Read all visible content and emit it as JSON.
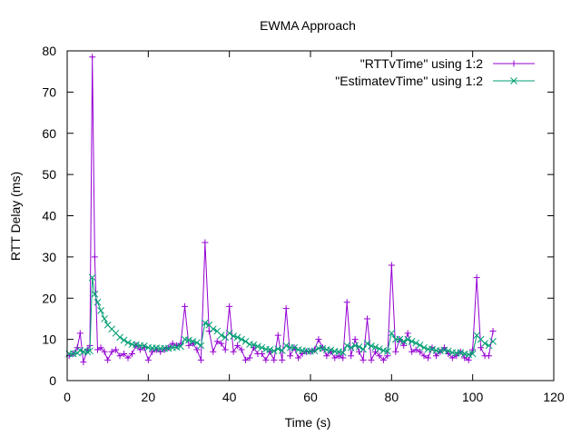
{
  "chart_data": {
    "type": "line",
    "title": "EWMA Approach",
    "xlabel": "Time (s)",
    "ylabel": "RTT Delay (ms)",
    "xlim": [
      0,
      120
    ],
    "ylim": [
      0,
      80
    ],
    "xticks": [
      0,
      20,
      40,
      60,
      80,
      100,
      120
    ],
    "yticks": [
      0,
      10,
      20,
      30,
      40,
      50,
      60,
      70,
      80
    ],
    "legend_position": "top-right",
    "grid": false,
    "series": [
      {
        "name": "\"RTTvTime\" using 1:2",
        "color": "#9400d3",
        "marker": "plus",
        "x": [
          0.5,
          1.5,
          2.5,
          3.2,
          4.0,
          5.0,
          5.6,
          6.2,
          6.8,
          7.5,
          8.3,
          9.2,
          10.0,
          11.0,
          12.0,
          13.0,
          14.0,
          15.0,
          16.0,
          17.0,
          18.0,
          19.0,
          20.0,
          21.0,
          22.0,
          23.0,
          24.0,
          25.0,
          26.0,
          27.0,
          28.0,
          29.0,
          30.0,
          31.0,
          32.0,
          33.0,
          34.0,
          35.0,
          36.0,
          37.0,
          38.0,
          39.0,
          40.0,
          41.0,
          42.0,
          43.0,
          44.0,
          45.0,
          46.0,
          47.0,
          48.0,
          49.0,
          50.0,
          51.0,
          52.0,
          53.0,
          54.0,
          55.0,
          56.0,
          57.0,
          58.0,
          59.0,
          60.0,
          61.0,
          62.0,
          63.0,
          64.0,
          65.0,
          66.0,
          67.0,
          68.0,
          69.0,
          70.0,
          71.0,
          72.0,
          73.0,
          74.0,
          75.0,
          76.0,
          77.0,
          78.0,
          79.0,
          80.0,
          81.0,
          82.0,
          83.0,
          84.0,
          85.0,
          86.0,
          87.0,
          88.0,
          89.0,
          90.0,
          91.0,
          92.0,
          93.0,
          94.0,
          95.0,
          96.0,
          97.0,
          98.0,
          99.0,
          100.0,
          101.0,
          102.0,
          103.0,
          104.0,
          105.0
        ],
        "y": [
          6,
          6.5,
          8,
          11.5,
          4.5,
          7.5,
          8.5,
          78.5,
          30,
          7.5,
          8,
          7,
          5,
          7,
          7.5,
          6,
          6.5,
          5.5,
          6.5,
          8.5,
          7.5,
          8,
          5,
          7,
          7.5,
          7,
          7.5,
          8,
          9,
          8.5,
          9,
          18,
          8.5,
          9,
          7.5,
          5,
          33.5,
          12,
          7,
          9.5,
          9,
          7.5,
          18,
          7,
          8.5,
          7.5,
          5,
          5.5,
          8,
          6.5,
          6.5,
          5,
          7,
          5,
          11,
          5,
          17.5,
          6,
          8,
          5.5,
          6.5,
          7,
          7,
          7.5,
          10,
          8,
          6,
          7,
          5.5,
          6,
          5.5,
          19,
          6,
          10,
          7,
          5,
          15,
          5,
          7,
          6,
          5,
          6,
          28,
          7,
          10,
          8.5,
          11.5,
          7,
          7.5,
          7,
          6,
          5.5,
          8,
          6,
          7,
          8,
          6.5,
          5.5,
          6,
          7,
          5.5,
          5,
          7.5,
          25,
          8,
          6,
          6,
          12
        ],
        "values": [
          6,
          6.5,
          8,
          11.5,
          4.5,
          7.5,
          8.5,
          78.5,
          30,
          7.5,
          8,
          7,
          5,
          7,
          7.5,
          6,
          6.5,
          5.5,
          6.5,
          8.5,
          7.5,
          8,
          5,
          7,
          7.5,
          7,
          7.5,
          8,
          9,
          8.5,
          9,
          18,
          8.5,
          9,
          7.5,
          5,
          33.5,
          12,
          7,
          9.5,
          9,
          7.5,
          18,
          7,
          8.5,
          7.5,
          5,
          5.5,
          8,
          6.5,
          6.5,
          5,
          7,
          5,
          11,
          5,
          17.5,
          6,
          8,
          5.5,
          6.5,
          7,
          7,
          7.5,
          10,
          8,
          6,
          7,
          5.5,
          6,
          5.5,
          19,
          6,
          10,
          7,
          5,
          15,
          5,
          7,
          6,
          5,
          6,
          28,
          7,
          10,
          8.5,
          11.5,
          7,
          7.5,
          7,
          6,
          5.5,
          8,
          6,
          7,
          8,
          6.5,
          5.5,
          6,
          7,
          5.5,
          5,
          7.5,
          25,
          8,
          6,
          6,
          12
        ]
      },
      {
        "name": "\"EstimatevTime\" using 1:2",
        "color": "#009e73",
        "marker": "cross",
        "x": [
          0.5,
          1.5,
          2.5,
          3.2,
          4.0,
          5.0,
          5.6,
          6.2,
          6.8,
          7.5,
          8.3,
          9.2,
          10.0,
          11.0,
          12.0,
          13.0,
          14.0,
          15.0,
          16.0,
          17.0,
          18.0,
          19.0,
          20.0,
          21.0,
          22.0,
          23.0,
          24.0,
          25.0,
          26.0,
          27.0,
          28.0,
          29.0,
          30.0,
          31.0,
          32.0,
          33.0,
          34.0,
          35.0,
          36.0,
          37.0,
          38.0,
          39.0,
          40.0,
          41.0,
          42.0,
          43.0,
          44.0,
          45.0,
          46.0,
          47.0,
          48.0,
          49.0,
          50.0,
          51.0,
          52.0,
          53.0,
          54.0,
          55.0,
          56.0,
          57.0,
          58.0,
          59.0,
          60.0,
          61.0,
          62.0,
          63.0,
          64.0,
          65.0,
          66.0,
          67.0,
          68.0,
          69.0,
          70.0,
          71.0,
          72.0,
          73.0,
          74.0,
          75.0,
          76.0,
          77.0,
          78.0,
          79.0,
          80.0,
          81.0,
          82.0,
          83.0,
          84.0,
          85.0,
          86.0,
          87.0,
          88.0,
          89.0,
          90.0,
          91.0,
          92.0,
          93.0,
          94.0,
          95.0,
          96.0,
          97.0,
          98.0,
          99.0,
          100.0,
          101.0,
          102.0,
          103.0,
          104.0,
          105.0
        ],
        "y": [
          6.5,
          6.5,
          6.7,
          7.3,
          7.0,
          7.0,
          7.2,
          25,
          21,
          19,
          17,
          15,
          13.5,
          12.5,
          11.5,
          10.5,
          9.8,
          9.2,
          8.8,
          8.7,
          8.5,
          8.4,
          8.0,
          7.9,
          7.9,
          7.8,
          7.8,
          7.8,
          8.0,
          8.1,
          8.3,
          10,
          9.8,
          9.5,
          9.2,
          8.5,
          14,
          13.5,
          12.5,
          12,
          11,
          10.5,
          11.5,
          10.8,
          10.5,
          10,
          9.5,
          8.8,
          8.7,
          8.3,
          8.0,
          7.6,
          7.5,
          7.2,
          7.7,
          7.3,
          8.5,
          8.0,
          8.0,
          7.5,
          7.3,
          7.2,
          7.1,
          7.2,
          7.8,
          7.8,
          7.5,
          7.4,
          7.1,
          7.0,
          6.8,
          8.5,
          8.0,
          8.5,
          8.2,
          7.6,
          9,
          8.4,
          8.1,
          7.7,
          7.3,
          7.1,
          11.5,
          10,
          10,
          9.5,
          10,
          9.5,
          9.1,
          8.6,
          8.0,
          7.6,
          7.6,
          7.3,
          7.2,
          7.4,
          7.2,
          6.8,
          6.7,
          6.8,
          6.5,
          6.3,
          6.5,
          11,
          10,
          9.0,
          8.5,
          9.5
        ]
      }
    ]
  }
}
